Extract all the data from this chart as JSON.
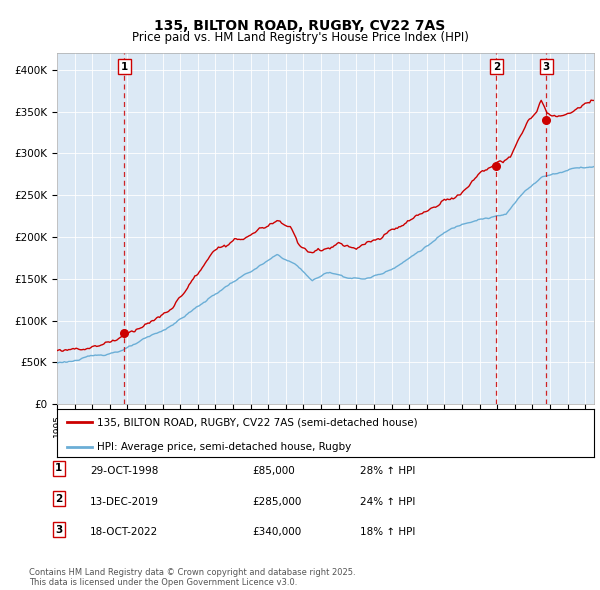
{
  "title": "135, BILTON ROAD, RUGBY, CV22 7AS",
  "subtitle": "Price paid vs. HM Land Registry's House Price Index (HPI)",
  "legend_line1": "135, BILTON ROAD, RUGBY, CV22 7AS (semi-detached house)",
  "legend_line2": "HPI: Average price, semi-detached house, Rugby",
  "footer_line1": "Contains HM Land Registry data © Crown copyright and database right 2025.",
  "footer_line2": "This data is licensed under the Open Government Licence v3.0.",
  "transactions": [
    {
      "num": 1,
      "date": "29-OCT-1998",
      "price": 85000,
      "pct": "28% ↑ HPI"
    },
    {
      "num": 2,
      "date": "13-DEC-2019",
      "price": 285000,
      "pct": "24% ↑ HPI"
    },
    {
      "num": 3,
      "date": "18-OCT-2022",
      "price": 340000,
      "pct": "18% ↑ HPI"
    }
  ],
  "transaction_dates_decimal": [
    1998.83,
    2019.95,
    2022.79
  ],
  "transaction_prices": [
    85000,
    285000,
    340000
  ],
  "hpi_color": "#6baed6",
  "price_color": "#cc0000",
  "dashed_line_color": "#cc0000",
  "plot_bg_color": "#dce9f5",
  "ylim": [
    0,
    420000
  ],
  "yticks": [
    0,
    50000,
    100000,
    150000,
    200000,
    250000,
    300000,
    350000,
    400000
  ],
  "xlim_start": 1995.0,
  "xlim_end": 2025.5
}
